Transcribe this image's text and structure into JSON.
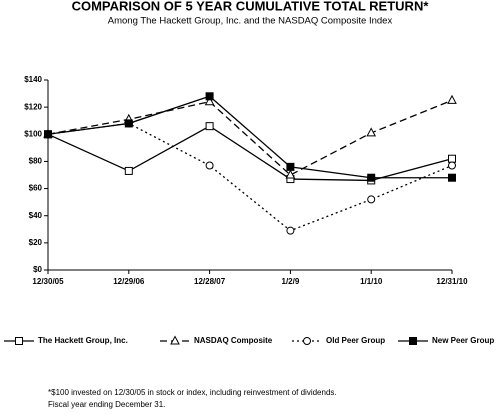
{
  "chart_data": {
    "type": "line",
    "title": "COMPARISON OF 5 YEAR CUMULATIVE TOTAL RETURN*",
    "subtitle": "Among The Hackett Group, Inc. and the NASDAQ Composite Index",
    "categories": [
      "12/30/05",
      "12/29/06",
      "12/28/07",
      "1/2/9",
      "1/1/10",
      "12/31/10"
    ],
    "series": [
      {
        "name": "The Hackett Group, Inc.",
        "color": "#000000",
        "dash": "solid",
        "marker": "square-open",
        "values": [
          100,
          73,
          106,
          67,
          66,
          82
        ]
      },
      {
        "name": "NASDAQ Composite",
        "color": "#000000",
        "dash": "dashed",
        "marker": "triangle-open",
        "values": [
          100,
          111,
          124,
          70,
          101,
          125
        ]
      },
      {
        "name": "Old Peer Group",
        "color": "#000000",
        "dash": "dotted",
        "marker": "circle-open",
        "values": [
          100,
          108,
          77,
          29,
          52,
          77
        ]
      },
      {
        "name": "New Peer Group",
        "color": "#000000",
        "dash": "solid",
        "marker": "square-filled",
        "values": [
          100,
          108,
          128,
          76,
          68,
          68
        ]
      }
    ],
    "ylim": [
      0,
      140
    ],
    "yticks": [
      {
        "value": 0,
        "label": "$0"
      },
      {
        "value": 20,
        "label": "$20"
      },
      {
        "value": 40,
        "label": "$40"
      },
      {
        "value": 60,
        "label": "$60"
      },
      {
        "value": 80,
        "label": "$80"
      },
      {
        "value": 100,
        "label": "$100"
      },
      {
        "value": 120,
        "label": "$120"
      },
      {
        "value": 140,
        "label": "$140"
      }
    ],
    "grid": false,
    "legend": "bottom",
    "footnotes": [
      "*$100 invested on 12/30/05 in stock or index, including reinvestment of dividends.",
      "Fiscal year ending December 31."
    ]
  }
}
